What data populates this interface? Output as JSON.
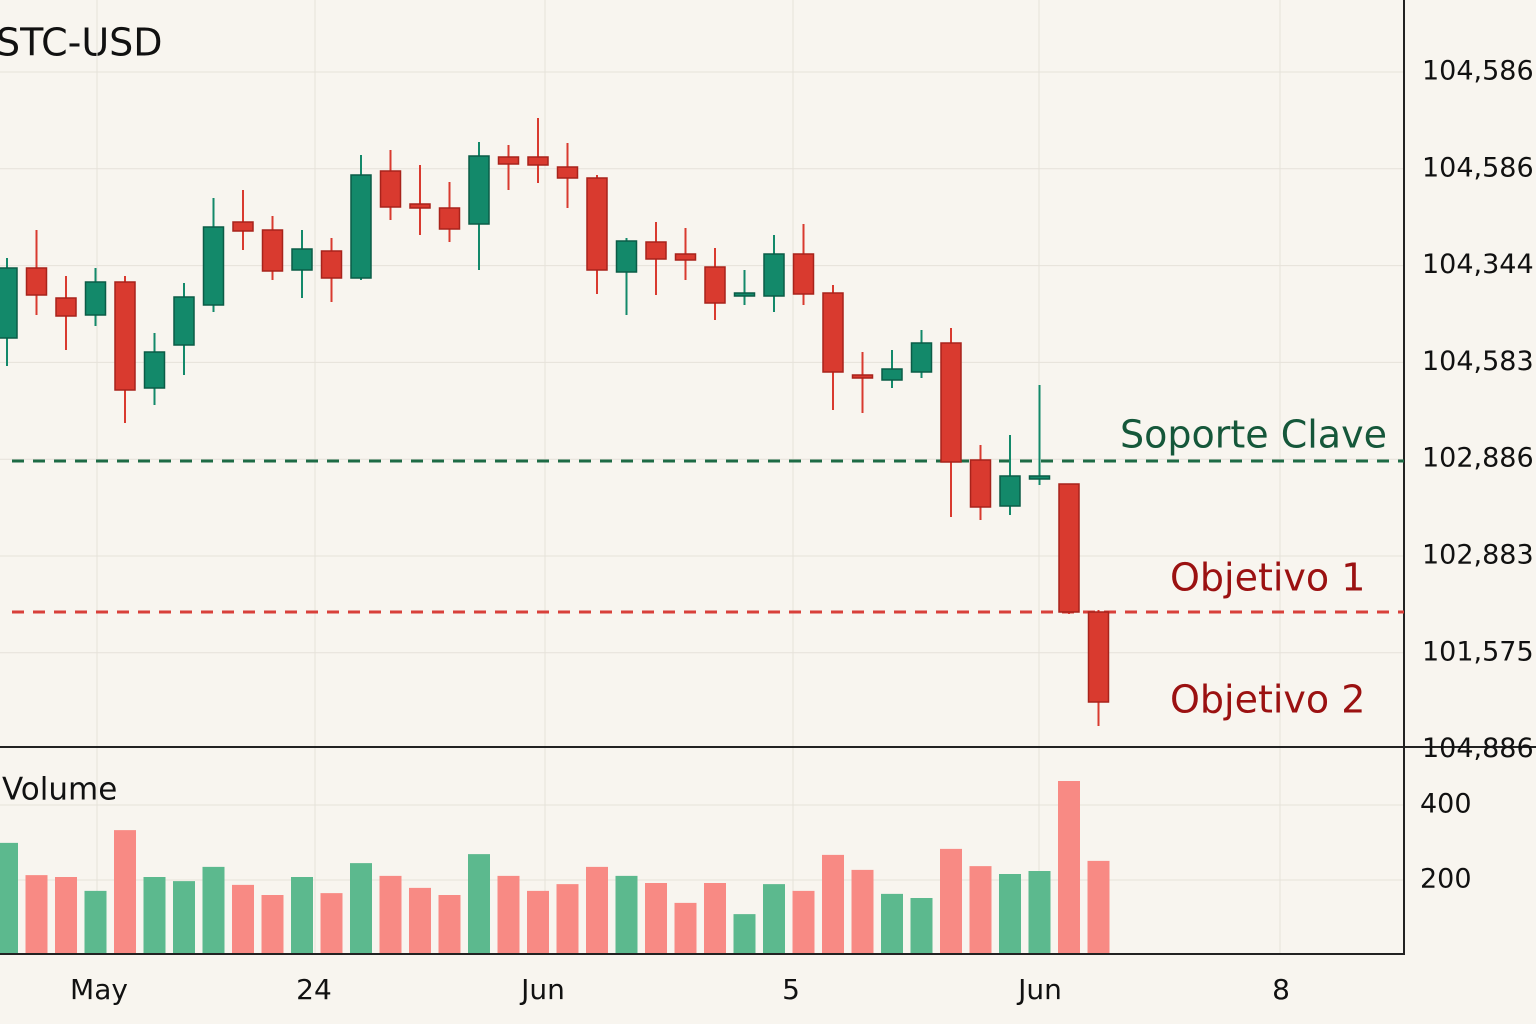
{
  "chart_data": {
    "type": "candlestick",
    "title": "STC-USD",
    "ylim": [
      100000,
      107450
    ],
    "up_color": "#13896a",
    "down_color": "#d93a2f",
    "open": [
      104070,
      104770,
      104470,
      104300,
      104630,
      103570,
      104000,
      104400,
      105230,
      105150,
      104750,
      104940,
      104670,
      105740,
      105410,
      105370,
      105210,
      105880,
      105880,
      105780,
      105670,
      104730,
      105030,
      104910,
      104780,
      104490,
      104490,
      104910,
      104520,
      103700,
      103650,
      103730,
      104020,
      102850,
      102390,
      102660,
      102610,
      101330
    ],
    "high": [
      104870,
      105150,
      104690,
      104770,
      104690,
      104120,
      104620,
      105470,
      105550,
      105290,
      105150,
      105070,
      105900,
      105950,
      105800,
      105630,
      106030,
      106000,
      106270,
      106020,
      105700,
      105070,
      105230,
      105170,
      104970,
      104750,
      105100,
      105210,
      104600,
      103930,
      103950,
      104150,
      104170,
      103000,
      103100,
      103600,
      102610,
      101350
    ],
    "low": [
      103790,
      104300,
      103950,
      104190,
      103220,
      103400,
      103700,
      104330,
      104950,
      104650,
      104470,
      104430,
      104650,
      105250,
      105100,
      105030,
      104750,
      105550,
      105620,
      105370,
      104510,
      104300,
      104500,
      104650,
      104250,
      104400,
      104330,
      104400,
      103350,
      103320,
      103570,
      103670,
      102280,
      102250,
      102300,
      102600,
      101310,
      100190
    ],
    "close": [
      104770,
      104500,
      104290,
      104630,
      103550,
      103930,
      104480,
      105180,
      105140,
      104740,
      104960,
      104670,
      105700,
      105380,
      105370,
      105160,
      105890,
      105810,
      105800,
      105670,
      104750,
      105040,
      104860,
      104850,
      104420,
      104520,
      104910,
      104510,
      103730,
      103670,
      103760,
      104020,
      102830,
      102380,
      102690,
      102690,
      101330,
      100430
    ],
    "price_axis_labels": [
      "104,586",
      "104,586",
      "104,344",
      "104,583",
      "102,886",
      "102,883",
      "101,575",
      "104,886"
    ],
    "x_axis_labels": [
      "May",
      "24",
      "Jun",
      "5",
      "Jun",
      "8"
    ],
    "levels": [
      {
        "label": "Soporte Clave",
        "value": 102840,
        "color": "#1d6b45"
      },
      {
        "label": "Objetivo 1",
        "value": 101330,
        "color": "#d8403a"
      }
    ],
    "annotations": [
      "Objetivo 2"
    ],
    "volume": {
      "label": "Volume",
      "ylim": [
        0,
        552
      ],
      "yticks": [
        200,
        400
      ],
      "up_color": "#5cb98e",
      "down_color": "#f88a84",
      "values": [
        299,
        213,
        208,
        171,
        333,
        208,
        197,
        235,
        187,
        160,
        208,
        165,
        245,
        211,
        179,
        160,
        269,
        211,
        171,
        189,
        235,
        211,
        192,
        139,
        192,
        109,
        189,
        171,
        267,
        227,
        163,
        152,
        283,
        237,
        216,
        224,
        464,
        251
      ]
    }
  }
}
